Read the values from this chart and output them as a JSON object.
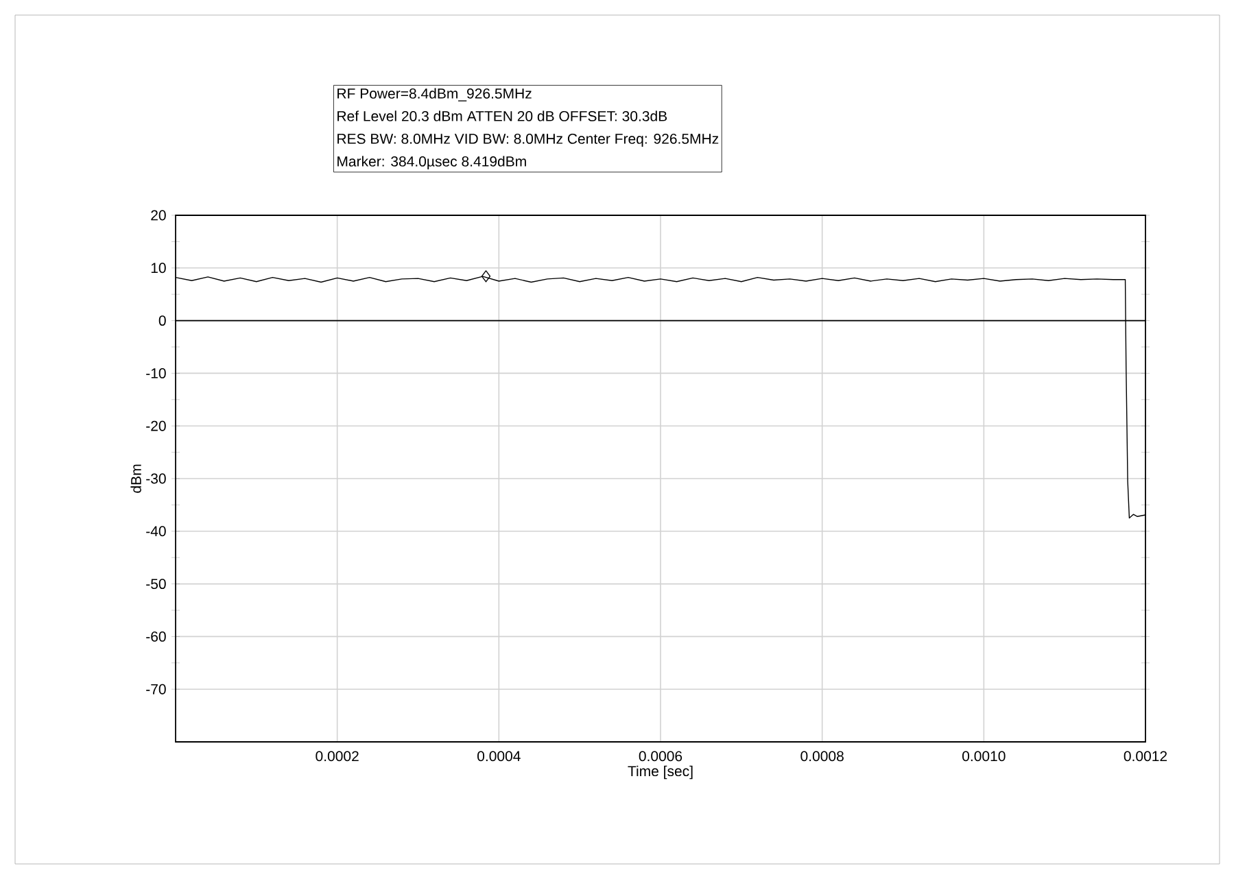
{
  "chart_data": {
    "type": "line",
    "title": "RF Power=8.4dBm_926.5MHz",
    "annotations": [
      "Ref Level 20.3 dBm ATTEN 20 dB OFFSET: 30.3dB",
      "RES BW: 8.0MHz VID BW: 8.0MHz Center Freq: 926.5MHz",
      "Marker: 384.0µsec 8.419dBm"
    ],
    "xlabel": "Time [sec]",
    "ylabel": "dBm",
    "series": [
      {
        "color": "#000000",
        "x": [
          0,
          2e-05,
          4e-05,
          6e-05,
          8e-05,
          0.0001,
          0.00012,
          0.00014,
          0.00016,
          0.00018,
          0.0002,
          0.00022,
          0.00024,
          0.00026,
          0.00028,
          0.0003,
          0.00032,
          0.00034,
          0.00036,
          0.00038,
          0.0004,
          0.00042,
          0.00044,
          0.00046,
          0.00048,
          0.0005,
          0.00052,
          0.00054,
          0.00056,
          0.00058,
          0.0006,
          0.00062,
          0.00064,
          0.00066,
          0.00068,
          0.0007,
          0.00072,
          0.00074,
          0.00076,
          0.00078,
          0.0008,
          0.00082,
          0.00084,
          0.00086,
          0.00088,
          0.0009,
          0.00092,
          0.00094,
          0.00096,
          0.00098,
          0.001,
          0.00102,
          0.00104,
          0.00106,
          0.00108,
          0.0011,
          0.00112,
          0.00114,
          0.00116,
          0.001175,
          0.001176,
          0.001178,
          0.00118,
          0.001185,
          0.00119,
          0.0012
        ],
        "values": [
          8.2,
          7.6,
          8.3,
          7.5,
          8.1,
          7.4,
          8.2,
          7.6,
          8.0,
          7.3,
          8.1,
          7.5,
          8.2,
          7.4,
          7.9,
          8.0,
          7.4,
          8.1,
          7.6,
          8.4,
          7.5,
          8.0,
          7.3,
          7.9,
          8.1,
          7.4,
          8.0,
          7.6,
          8.2,
          7.5,
          7.9,
          7.4,
          8.1,
          7.6,
          8.0,
          7.4,
          8.2,
          7.7,
          7.9,
          7.5,
          8.0,
          7.6,
          8.1,
          7.5,
          7.9,
          7.6,
          8.0,
          7.4,
          7.9,
          7.7,
          8.0,
          7.5,
          7.8,
          7.9,
          7.6,
          8.0,
          7.8,
          7.9,
          7.8,
          7.8,
          -8.5,
          -30.5,
          -37.5,
          -36.8,
          -37.2,
          -36.9
        ]
      },
      {
        "type": "scatter",
        "color": "#000000",
        "marker": "diamond",
        "x": [
          0.000384
        ],
        "values": [
          8.419
        ]
      }
    ],
    "xlim": [
      0,
      0.0012
    ],
    "ylim": [
      -80,
      20
    ],
    "xticks": [
      {
        "value": 0.0002,
        "label": "0.0002"
      },
      {
        "value": 0.0004,
        "label": "0.0004"
      },
      {
        "value": 0.0006,
        "label": "0.0006"
      },
      {
        "value": 0.0008,
        "label": "0.0008"
      },
      {
        "value": 0.001,
        "label": "0.0010"
      },
      {
        "value": 0.0012,
        "label": "0.0012"
      }
    ],
    "yticks": [
      20,
      10,
      0,
      -10,
      -20,
      -30,
      -40,
      -50,
      -60,
      -70
    ],
    "ref_lines": [
      {
        "axis": "y",
        "value": 0,
        "color": "#000000"
      }
    ],
    "grid": true,
    "marker": "none",
    "line_style": "solid"
  }
}
